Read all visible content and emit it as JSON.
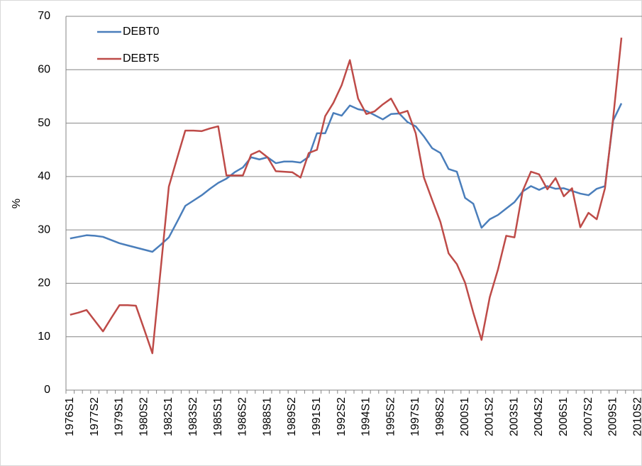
{
  "chart_data": {
    "type": "line",
    "ylabel": "%",
    "categories": [
      "1976S1",
      null,
      null,
      "1977S2",
      null,
      null,
      "1979S1",
      null,
      null,
      "1980S2",
      null,
      null,
      "1982S1",
      null,
      null,
      "1983S2",
      null,
      null,
      "1985S1",
      null,
      null,
      "1986S2",
      null,
      null,
      "1988S1",
      null,
      null,
      "1989S2",
      null,
      null,
      "1991S1",
      null,
      null,
      "1992S2",
      null,
      null,
      "1994S1",
      null,
      null,
      "1995S2",
      null,
      null,
      "1997S1",
      null,
      null,
      "1998S2",
      null,
      null,
      "2000S1",
      null,
      null,
      "2001S2",
      null,
      null,
      "2003S1",
      null,
      null,
      "2004S2",
      null,
      null,
      "2006S1",
      null,
      null,
      "2007S2",
      null,
      null,
      "2009S1",
      null,
      null,
      "2010S2"
    ],
    "series": [
      {
        "name": "DEBT0",
        "color": "#4a7ebb",
        "values": [
          28.4,
          28.7,
          29.0,
          28.9,
          28.7,
          28.1,
          27.5,
          27.1,
          26.7,
          26.3,
          25.9,
          27.2,
          28.6,
          31.5,
          34.5,
          35.5,
          36.5,
          37.7,
          38.8,
          39.6,
          40.8,
          41.7,
          43.6,
          43.2,
          43.6,
          42.5,
          42.8,
          42.8,
          42.6,
          43.7,
          48.1,
          48.1,
          51.9,
          51.4,
          53.3,
          52.6,
          52.3,
          51.5,
          50.7,
          51.7,
          51.8,
          50.2,
          49.4,
          47.5,
          45.3,
          44.4,
          41.4,
          40.9,
          36.0,
          34.9,
          30.4,
          32.0,
          32.8,
          34.0,
          35.2,
          37.2,
          38.2,
          37.5,
          38.2,
          37.7,
          37.8,
          37.3,
          36.8,
          36.5,
          37.7,
          38.2,
          50.5,
          53.7,
          null,
          null
        ]
      },
      {
        "name": "DEBT5",
        "color": "#be4b48",
        "values": [
          14.1,
          14.5,
          15.0,
          13.0,
          11.0,
          13.5,
          15.9,
          15.9,
          15.8,
          11.4,
          6.9,
          22.5,
          38.1,
          43.4,
          48.6,
          48.6,
          48.5,
          49.0,
          49.4,
          40.2,
          40.2,
          40.2,
          44.1,
          44.8,
          43.6,
          41.0,
          40.9,
          40.8,
          39.8,
          44.4,
          45.0,
          51.3,
          53.8,
          57.1,
          61.8,
          54.6,
          51.7,
          52.2,
          53.5,
          54.6,
          51.8,
          52.3,
          48.1,
          39.8,
          35.6,
          31.5,
          25.6,
          23.6,
          20.1,
          14.5,
          9.4,
          17.4,
          22.6,
          28.9,
          28.6,
          37.3,
          40.9,
          40.4,
          37.6,
          39.7,
          36.3,
          37.8,
          30.5,
          33.2,
          32.0,
          37.8,
          51.0,
          66.0,
          null,
          null
        ]
      }
    ],
    "ylim": [
      0,
      70
    ],
    "yticks": [
      0,
      10,
      20,
      30,
      40,
      50,
      60,
      70
    ],
    "grid": true,
    "legend": "upper-left"
  }
}
